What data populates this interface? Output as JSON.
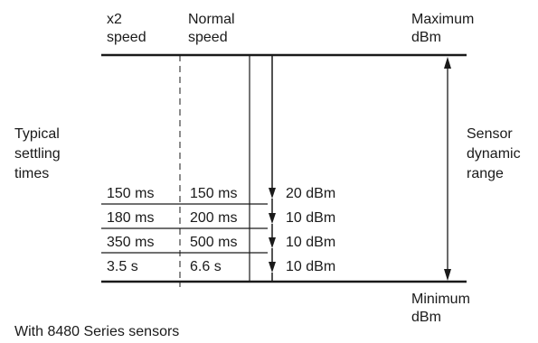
{
  "headers": {
    "x2_line1": "x2",
    "x2_line2": "speed",
    "normal_line1": "Normal",
    "normal_line2": "speed",
    "max_line1": "Maximum",
    "max_line2": "dBm"
  },
  "left_label": [
    "Typical",
    "settling",
    "times"
  ],
  "right_label": [
    "Sensor",
    "dynamic",
    "range"
  ],
  "rows": [
    {
      "x2": "150 ms",
      "normal": "150 ms",
      "dbm": "20 dBm"
    },
    {
      "x2": "180 ms",
      "normal": "200 ms",
      "dbm": "10 dBm"
    },
    {
      "x2": "350 ms",
      "normal": "500 ms",
      "dbm": "10 dBm"
    },
    {
      "x2": "3.5 s",
      "normal": "6.6 s",
      "dbm": "10 dBm"
    }
  ],
  "min_label": {
    "line1": "Minimum",
    "line2": "dBm"
  },
  "footnote": "With 8480 Series sensors"
}
